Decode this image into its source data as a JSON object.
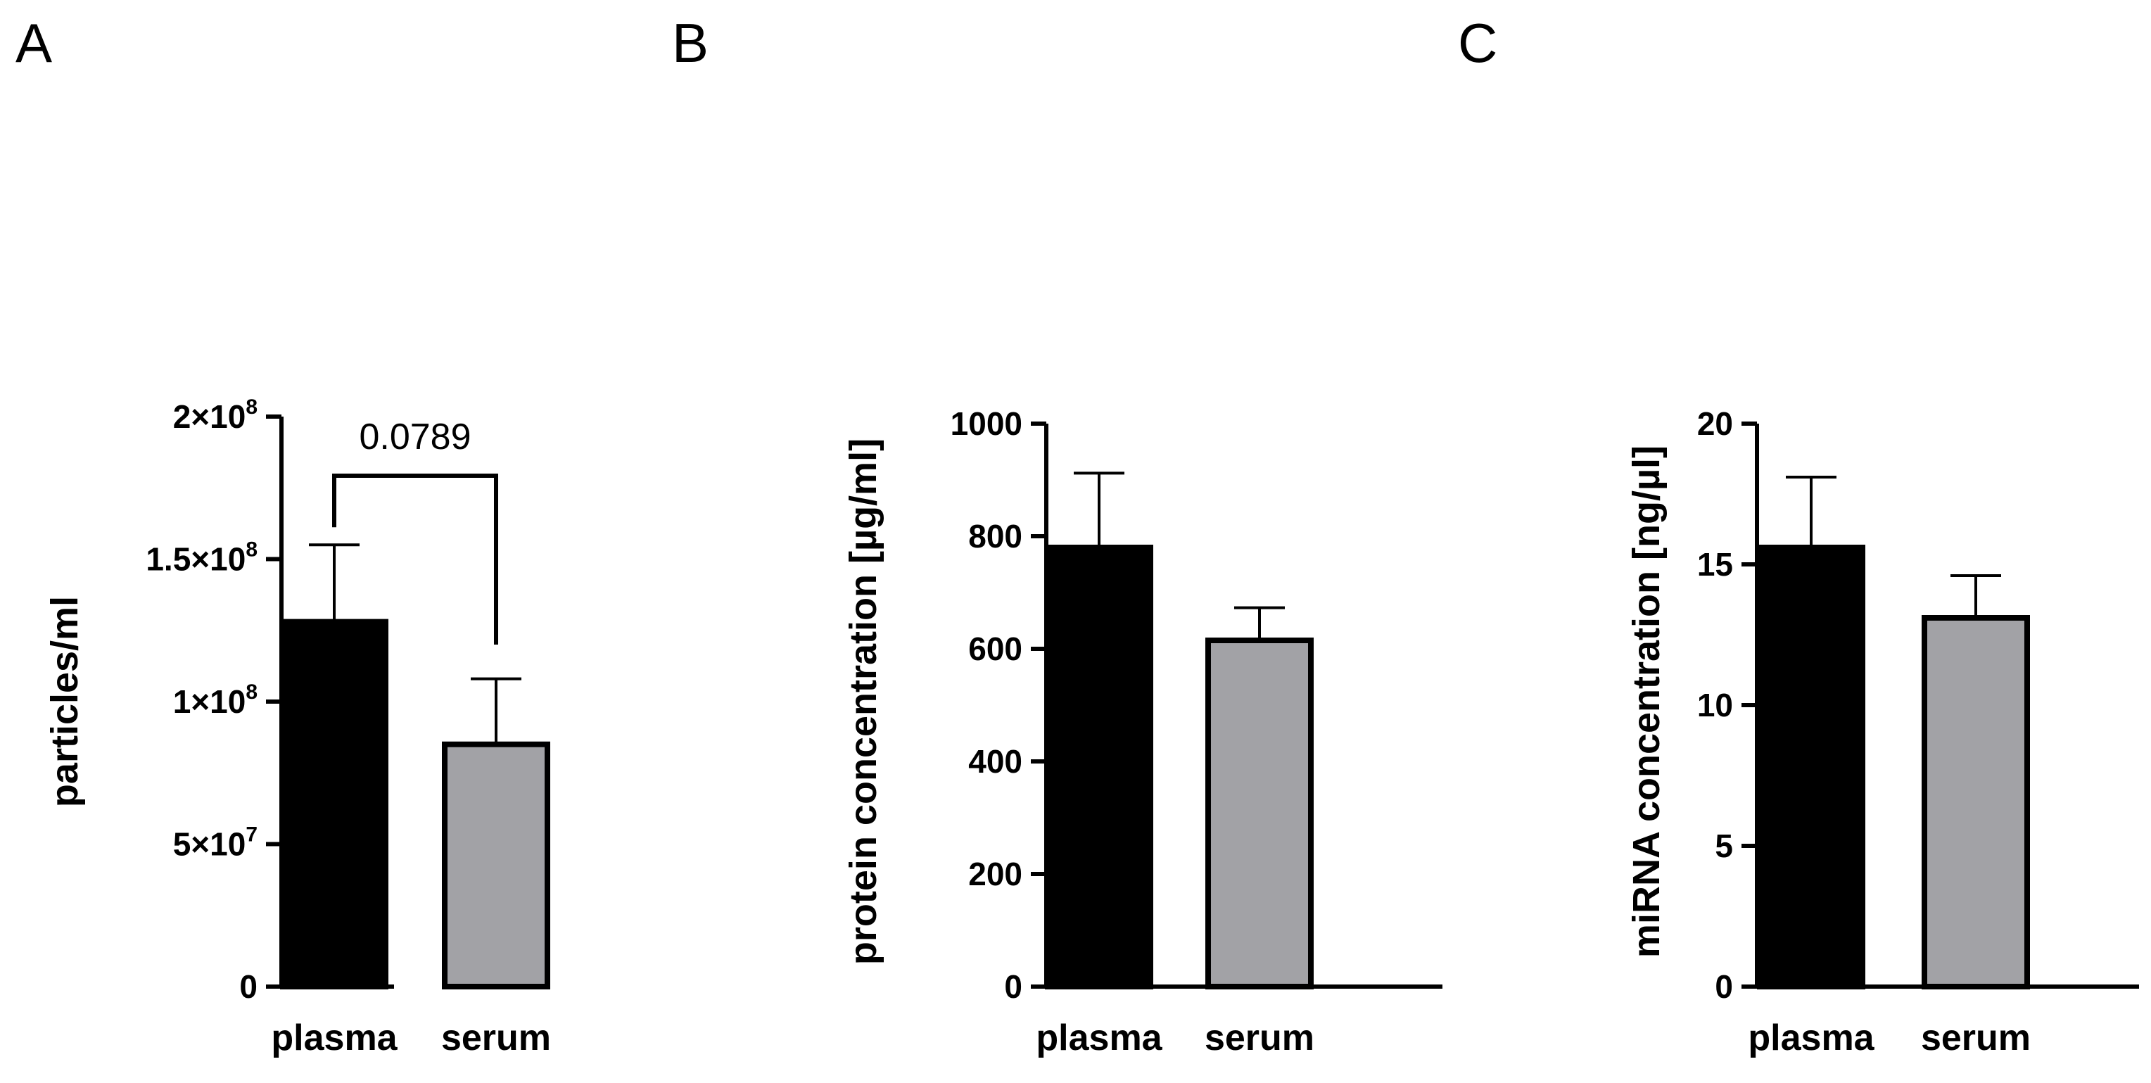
{
  "chart_data": [
    {
      "panel": "A",
      "type": "bar",
      "categories": [
        "plasma",
        "serum"
      ],
      "values": [
        128000000,
        85000000
      ],
      "errors": [
        27000000,
        23000000
      ],
      "colors": [
        "#000000",
        "#a2a2a6"
      ],
      "ylabel": "particles/ml",
      "ylim": [
        0,
        200000000
      ],
      "yticks": [
        {
          "value": 0,
          "base": "0",
          "exp": ""
        },
        {
          "value": 50000000,
          "base": "5×10",
          "exp": "7"
        },
        {
          "value": 100000000,
          "base": "1×10",
          "exp": "8"
        },
        {
          "value": 150000000,
          "base": "1.5×10",
          "exp": "8"
        },
        {
          "value": 200000000,
          "base": "2×10",
          "exp": "8"
        }
      ],
      "annotation": {
        "text": "0.0789",
        "from": 0,
        "to": 1
      }
    },
    {
      "panel": "B",
      "type": "bar",
      "categories": [
        "plasma",
        "serum"
      ],
      "values": [
        780,
        615
      ],
      "errors": [
        132,
        58
      ],
      "colors": [
        "#000000",
        "#a2a2a6"
      ],
      "ylabel": "protein concentration [µg/ml]",
      "ylim": [
        0,
        1000
      ],
      "yticks": [
        {
          "value": 0,
          "base": "0",
          "exp": ""
        },
        {
          "value": 200,
          "base": "200",
          "exp": ""
        },
        {
          "value": 400,
          "base": "400",
          "exp": ""
        },
        {
          "value": 600,
          "base": "600",
          "exp": ""
        },
        {
          "value": 800,
          "base": "800",
          "exp": ""
        },
        {
          "value": 1000,
          "base": "1000",
          "exp": ""
        }
      ]
    },
    {
      "panel": "C",
      "type": "bar",
      "categories": [
        "plasma",
        "serum"
      ],
      "values": [
        15.6,
        13.1
      ],
      "errors": [
        2.5,
        1.5
      ],
      "colors": [
        "#000000",
        "#a2a2a6"
      ],
      "ylabel": "miRNA concentration [ng/µl]",
      "ylim": [
        0,
        20
      ],
      "yticks": [
        {
          "value": 0,
          "base": "0",
          "exp": ""
        },
        {
          "value": 5,
          "base": "5",
          "exp": ""
        },
        {
          "value": 10,
          "base": "10",
          "exp": ""
        },
        {
          "value": 15,
          "base": "15",
          "exp": ""
        },
        {
          "value": 20,
          "base": "20",
          "exp": ""
        }
      ]
    }
  ]
}
